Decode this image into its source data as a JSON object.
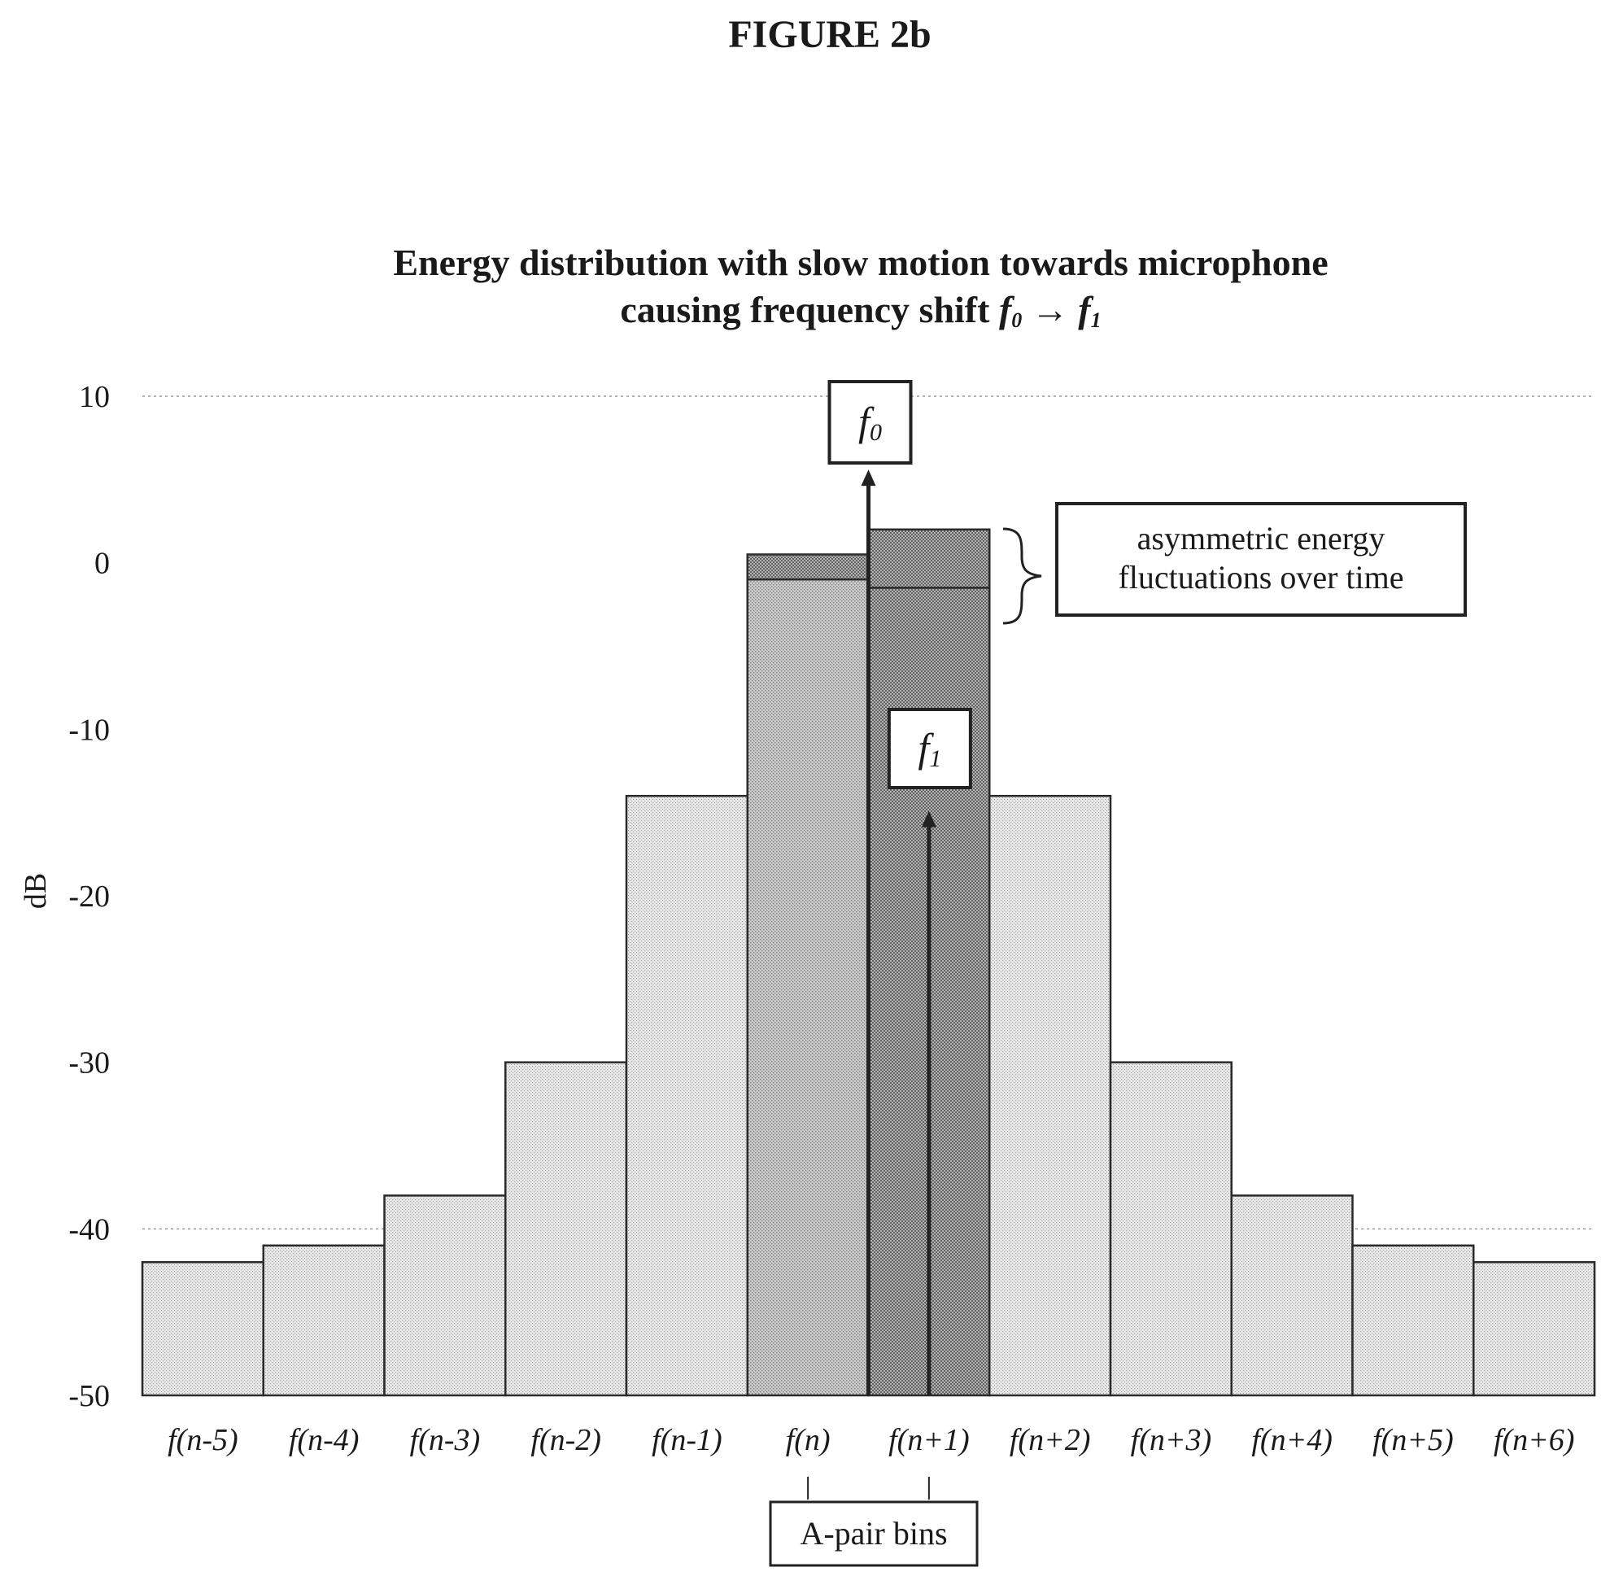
{
  "figure_label": "FIGURE 2b",
  "chart_data": {
    "type": "bar",
    "title_line1": "Energy distribution with slow motion towards microphone",
    "title_line2": "causing frequency shift ",
    "title_f0": "f",
    "title_f0_sub": "0",
    "title_arrow": " → ",
    "title_f1": "f",
    "title_f1_sub": "1",
    "ylabel": "dB",
    "xlabel": "",
    "ylim": [
      -50,
      10
    ],
    "yticks": [
      10,
      0,
      -10,
      -20,
      -30,
      -40,
      -50
    ],
    "gridlines": [
      10,
      -40
    ],
    "categories": [
      "f(n-5)",
      "f(n-4)",
      "f(n-3)",
      "f(n-2)",
      "f(n-1)",
      "f(n)",
      "f(n+1)",
      "f(n+2)",
      "f(n+3)",
      "f(n+4)",
      "f(n+5)",
      "f(n+6)"
    ],
    "values": [
      -42,
      -41,
      -38,
      -30,
      -14,
      -1,
      -1.5,
      -14,
      -30,
      -38,
      -41,
      -42
    ],
    "fluctuation": [
      {
        "category": "f(n)",
        "low": -1,
        "high": 0.5
      },
      {
        "category": "f(n+1)",
        "low": -1.5,
        "high": 2
      }
    ],
    "annotations": {
      "f0_label": "f",
      "f0_sub": "0",
      "f1_label": "f",
      "f1_sub": "1",
      "f0_arrow_top": 5.5,
      "f1_arrow_top": -15,
      "fluctuation_text_line1": "asymmetric energy",
      "fluctuation_text_line2": "fluctuations over time",
      "pair_label": "A-pair bins"
    },
    "colors": {
      "bar_fill": "#e2e2e2",
      "bar_center_fill": "#c9c9c9",
      "fluct_fill": "#a8a8a8",
      "stroke": "#2a2a2a",
      "grid": "#9a9a9a"
    }
  }
}
